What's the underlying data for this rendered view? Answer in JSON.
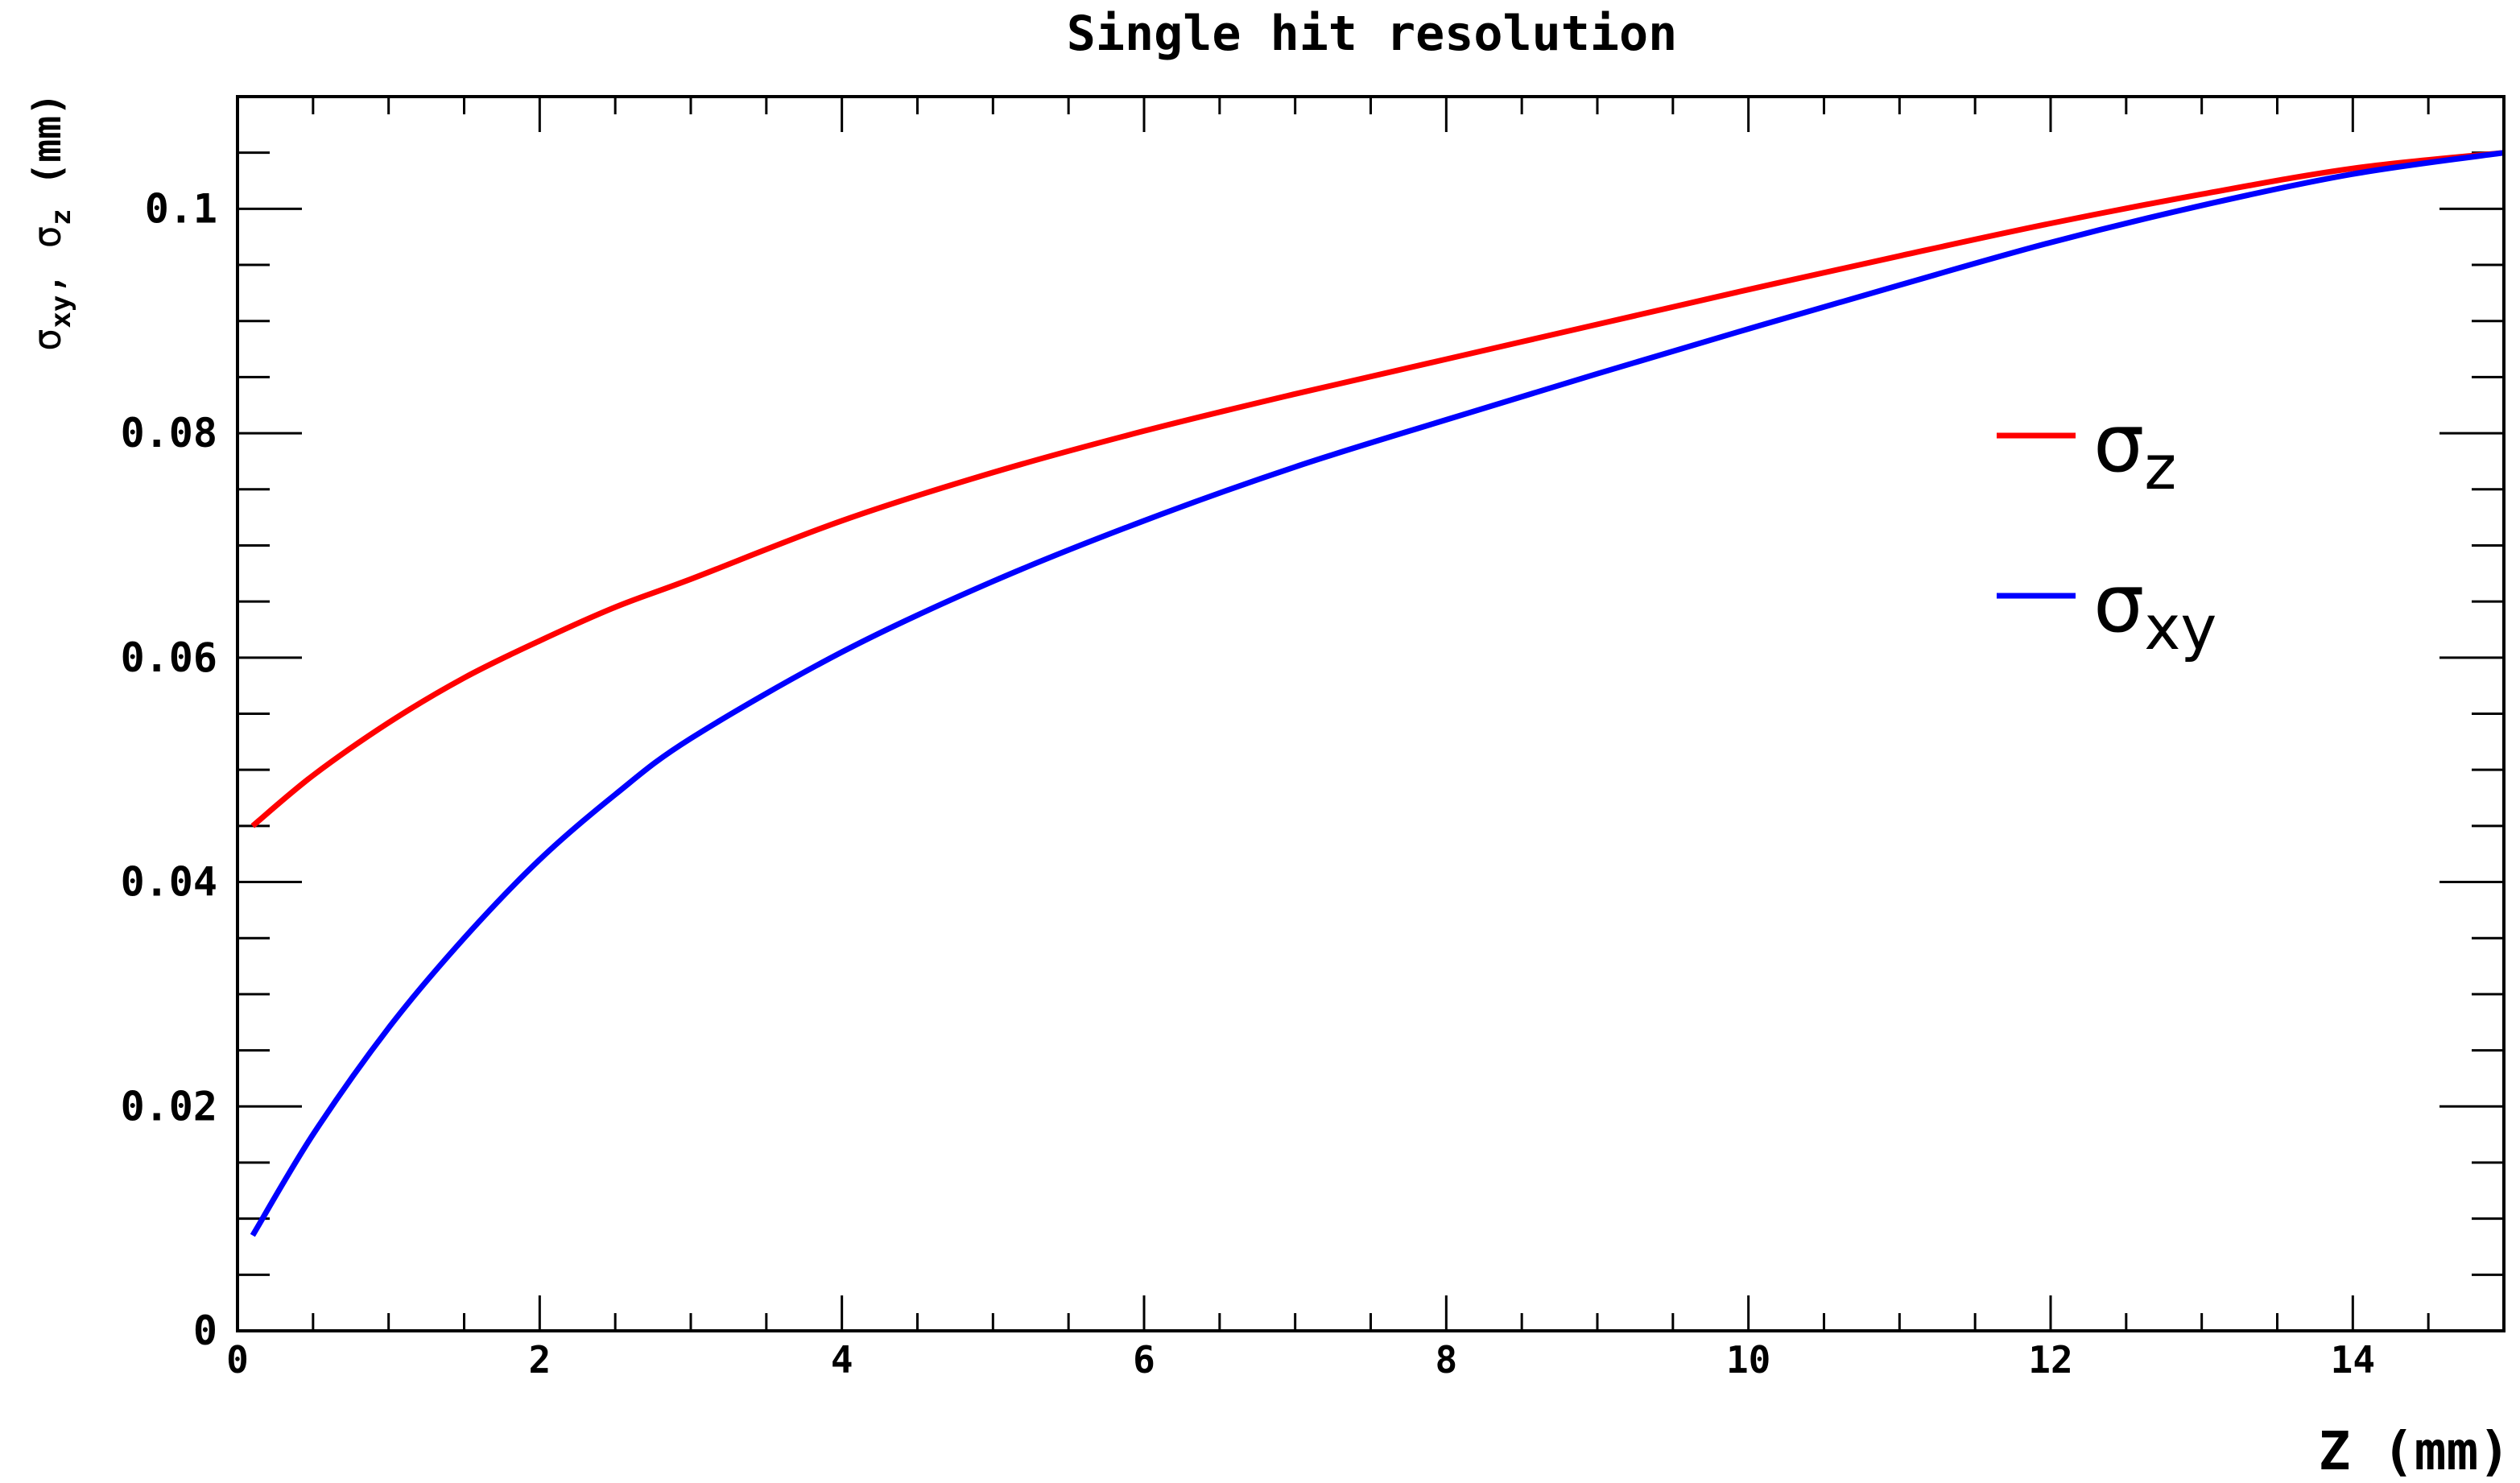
{
  "chart_data": {
    "type": "line",
    "title": "Single hit resolution",
    "xlabel": "Z (mm)",
    "ylabel": {
      "parts": [
        "σ",
        "xy",
        ", σ",
        "z",
        " (mm)"
      ]
    },
    "xlim": [
      0,
      15
    ],
    "ylim": [
      0,
      0.11
    ],
    "x_ticks": [
      0,
      2,
      4,
      6,
      8,
      10,
      12,
      14
    ],
    "x_tick_labels": [
      "0",
      "2",
      "4",
      "6",
      "8",
      "10",
      "12",
      "14"
    ],
    "y_ticks": [
      0,
      0.02,
      0.04,
      0.06,
      0.08,
      0.1
    ],
    "y_tick_labels": [
      "0",
      "0.02",
      "0.04",
      "0.06",
      "0.08",
      "0.1"
    ],
    "grid": false,
    "legend": {
      "placement": "right",
      "entries": [
        {
          "symbol": "σ",
          "sub": "z",
          "series": 0
        },
        {
          "symbol": "σ",
          "sub": "xy",
          "series": 1
        }
      ]
    },
    "x": [
      0.1,
      0.5,
      1,
      1.5,
      2,
      2.5,
      3,
      4,
      5,
      6,
      7,
      8,
      9,
      10,
      11,
      12,
      13,
      14,
      15
    ],
    "series": [
      {
        "key": "sigma_z",
        "color": "#ff0000",
        "values": [
          0.045,
          0.0495,
          0.0542,
          0.0582,
          0.0615,
          0.0645,
          0.067,
          0.0722,
          0.0765,
          0.0802,
          0.0835,
          0.0866,
          0.0897,
          0.0928,
          0.0958,
          0.0987,
          0.1013,
          0.1036,
          0.105
        ]
      },
      {
        "key": "sigma_xy",
        "color": "#0000ff",
        "values": [
          0.0085,
          0.0175,
          0.027,
          0.035,
          0.042,
          0.0478,
          0.0528,
          0.0605,
          0.0668,
          0.0722,
          0.077,
          0.0812,
          0.0853,
          0.0893,
          0.0932,
          0.097,
          0.1003,
          0.1031,
          0.105
        ]
      }
    ]
  }
}
